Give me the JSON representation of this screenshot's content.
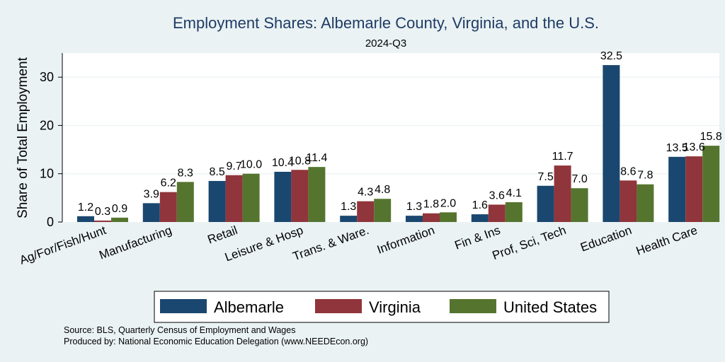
{
  "chart_data": {
    "type": "bar",
    "title": "Employment Shares: Albemarle County, Virginia, and the U.S.",
    "subtitle": "2024-Q3",
    "ylabel": "Share of Total Employment",
    "xlabel": "",
    "ylim": [
      0,
      35
    ],
    "yticks": [
      0,
      10,
      20,
      30
    ],
    "grid": true,
    "legend_position": "bottom",
    "categories": [
      "Ag/For/Fish/Hunt",
      "Manufacturing",
      "Retail",
      "Leisure & Hosp",
      "Trans. & Ware.",
      "Information",
      "Fin & Ins",
      "Prof, Sci, Tech",
      "Education",
      "Health Care"
    ],
    "series": [
      {
        "name": "Albemarle",
        "color": "#1a476f",
        "values": [
          1.2,
          3.9,
          8.5,
          10.4,
          1.3,
          1.3,
          1.6,
          7.5,
          32.5,
          13.5
        ]
      },
      {
        "name": "Virginia",
        "color": "#90353b",
        "values": [
          0.3,
          6.2,
          9.7,
          10.8,
          4.3,
          1.8,
          3.6,
          11.7,
          8.6,
          13.6
        ]
      },
      {
        "name": "United States",
        "color": "#55752f",
        "values": [
          0.9,
          8.3,
          10.0,
          11.4,
          4.8,
          2.0,
          4.1,
          7.0,
          7.8,
          15.8
        ]
      }
    ],
    "data_labels": [
      [
        "1.2",
        "3.9",
        "8.5",
        "10.4",
        "1.3",
        "1.3",
        "1.6",
        "7.5",
        "32.5",
        "13.5"
      ],
      [
        "0.3",
        "6.2",
        "9.7",
        "10.8",
        "4.3",
        "1.8",
        "3.6",
        "11.7",
        "8.6",
        "13.6"
      ],
      [
        "0.9",
        "8.3",
        "10.0",
        "11.4",
        "4.8",
        "2.0",
        "4.1",
        "7.0",
        "7.8",
        "15.8"
      ]
    ]
  },
  "footnotes": [
    "Source: BLS, Quarterly Census of Employment and Wages",
    "Produced by: National Economic Education Delegation (www.NEEDEcon.org)"
  ],
  "colors": {
    "background": "#eaf2f3",
    "plot_background": "#ffffff",
    "title": "#1f3b66"
  }
}
